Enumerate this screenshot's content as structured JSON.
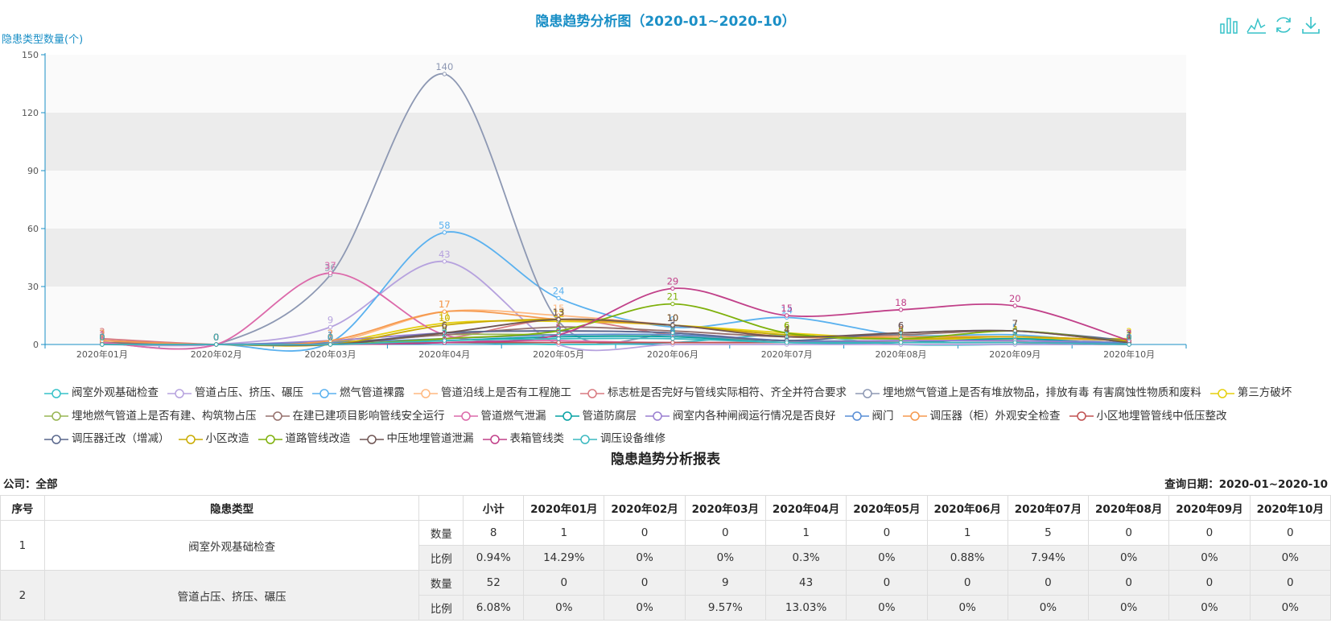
{
  "chart_data": {
    "type": "line",
    "title": "隐患趋势分析图（2020-01~2020-10）",
    "ylabel": "隐患类型数量(个)",
    "ylim": [
      0,
      150
    ],
    "yticks": [
      0,
      30,
      60,
      90,
      120,
      150
    ],
    "categories": [
      "2020年01月",
      "2020年02月",
      "2020年03月",
      "2020年04月",
      "2020年05月",
      "2020年06月",
      "2020年07月",
      "2020年08月",
      "2020年09月",
      "2020年10月"
    ],
    "legend_position": "bottom",
    "series": [
      {
        "name": "阀室外观基础检查",
        "color": "#37c2c8",
        "values": [
          1,
          0,
          0,
          1,
          0,
          1,
          5,
          0,
          0,
          0
        ]
      },
      {
        "name": "管道占压、挤压、碾压",
        "color": "#b6a2de",
        "values": [
          0,
          0,
          9,
          43,
          0,
          0,
          0,
          0,
          0,
          0
        ]
      },
      {
        "name": "燃气管道裸露",
        "color": "#5ab1ef",
        "values": [
          0,
          0,
          1,
          58,
          24,
          9,
          14,
          5,
          5,
          0
        ]
      },
      {
        "name": "管道沿线上是否有工程施工",
        "color": "#ffb980",
        "values": [
          2,
          0,
          1,
          17,
          15,
          10,
          4,
          3,
          3,
          2
        ]
      },
      {
        "name": "标志桩是否完好与管线实际相符、齐全并符合要求",
        "color": "#d87a80",
        "values": [
          3,
          0,
          0,
          3,
          13,
          5,
          2,
          1,
          1,
          0
        ]
      },
      {
        "name": "埋地燃气管道上是否有堆放物品，排放有毒 有害腐蚀性物质和废料",
        "color": "#8d98b3",
        "values": [
          1,
          0,
          36,
          140,
          12,
          5,
          2,
          2,
          2,
          0
        ]
      },
      {
        "name": "第三方破坏",
        "color": "#e5cf0d",
        "values": [
          0,
          0,
          1,
          11,
          12,
          10,
          6,
          3,
          3,
          3
        ]
      },
      {
        "name": "埋地燃气管道上是否有建、构筑物占压",
        "color": "#97b552",
        "values": [
          1,
          0,
          0,
          5,
          5,
          5,
          2,
          2,
          2,
          1
        ]
      },
      {
        "name": "在建已建项目影响管线安全运行",
        "color": "#95706d",
        "values": [
          1,
          0,
          1,
          5,
          9,
          7,
          4,
          5,
          7,
          1
        ]
      },
      {
        "name": "管道燃气泄漏",
        "color": "#dc69aa",
        "values": [
          1,
          0,
          37,
          5,
          2,
          1,
          1,
          1,
          1,
          0
        ]
      },
      {
        "name": "管道防腐层",
        "color": "#07a2a4",
        "values": [
          0,
          0,
          0,
          2,
          4,
          4,
          1,
          1,
          3,
          0
        ]
      },
      {
        "name": "阀室内各种闸阀运行情况是否良好",
        "color": "#9a7fd1",
        "values": [
          2,
          0,
          2,
          6,
          7,
          6,
          2,
          2,
          2,
          1
        ]
      },
      {
        "name": "阀门",
        "color": "#588dd5",
        "values": [
          0,
          0,
          1,
          3,
          5,
          5,
          2,
          1,
          1,
          1
        ]
      },
      {
        "name": "调压器（柜）外观安全检查",
        "color": "#f5994e",
        "values": [
          2,
          0,
          2,
          17,
          13,
          10,
          4,
          4,
          4,
          2
        ]
      },
      {
        "name": "小区地埋管管线中低压整改",
        "color": "#c05050",
        "values": [
          0,
          0,
          0,
          1,
          1,
          1,
          1,
          1,
          1,
          0
        ]
      },
      {
        "name": "调压器迁改（增减）",
        "color": "#59678c",
        "values": [
          0,
          0,
          0,
          6,
          7,
          6,
          2,
          6,
          7,
          2
        ]
      },
      {
        "name": "小区改造",
        "color": "#c9ab00",
        "values": [
          0,
          0,
          0,
          10,
          13,
          10,
          5,
          3,
          4,
          2
        ]
      },
      {
        "name": "道路管线改造",
        "color": "#7eb00a",
        "values": [
          0,
          0,
          0,
          3,
          7,
          21,
          6,
          3,
          7,
          1
        ]
      },
      {
        "name": "中压地埋管道泄漏",
        "color": "#6f5553",
        "values": [
          0,
          0,
          0,
          6,
          13,
          10,
          4,
          6,
          7,
          1
        ]
      },
      {
        "name": "表箱管线类",
        "color": "#c14089",
        "values": [
          0,
          0,
          0,
          1,
          5,
          29,
          15,
          18,
          20,
          2
        ]
      },
      {
        "name": "调压设备维修",
        "color": "#3cb9c0",
        "values": [
          0,
          0,
          0,
          2,
          3,
          3,
          1,
          1,
          1,
          0
        ]
      }
    ]
  },
  "report": {
    "title": "隐患趋势分析报表",
    "company": "公司：全部",
    "query_date": "查询日期：2020-01~2020-10",
    "headers": [
      "序号",
      "隐患类型",
      "",
      "小计",
      "2020年01月",
      "2020年02月",
      "2020年03月",
      "2020年04月",
      "2020年05月",
      "2020年06月",
      "2020年07月",
      "2020年08月",
      "2020年09月",
      "2020年10月"
    ],
    "rows": [
      {
        "no": "1",
        "type": "阀室外观基础检查",
        "count_label": "数量",
        "counts": [
          "8",
          "1",
          "0",
          "0",
          "1",
          "0",
          "1",
          "5",
          "0",
          "0",
          "0"
        ],
        "ratio_label": "比例",
        "ratios": [
          "0.94%",
          "14.29%",
          "0%",
          "0%",
          "0.3%",
          "0%",
          "0.88%",
          "7.94%",
          "0%",
          "0%",
          "0%"
        ]
      },
      {
        "no": "2",
        "type": "管道占压、挤压、碾压",
        "count_label": "数量",
        "counts": [
          "52",
          "0",
          "0",
          "9",
          "43",
          "0",
          "0",
          "0",
          "0",
          "0",
          "0"
        ],
        "ratio_label": "比例",
        "ratios": [
          "6.08%",
          "0%",
          "0%",
          "9.57%",
          "13.03%",
          "0%",
          "0%",
          "0%",
          "0%",
          "0%",
          "0%"
        ]
      }
    ]
  },
  "toolbox": {
    "icons": [
      "bar-chart-icon",
      "line-chart-icon",
      "refresh-icon",
      "download-icon"
    ],
    "color": "#37c2c8"
  }
}
